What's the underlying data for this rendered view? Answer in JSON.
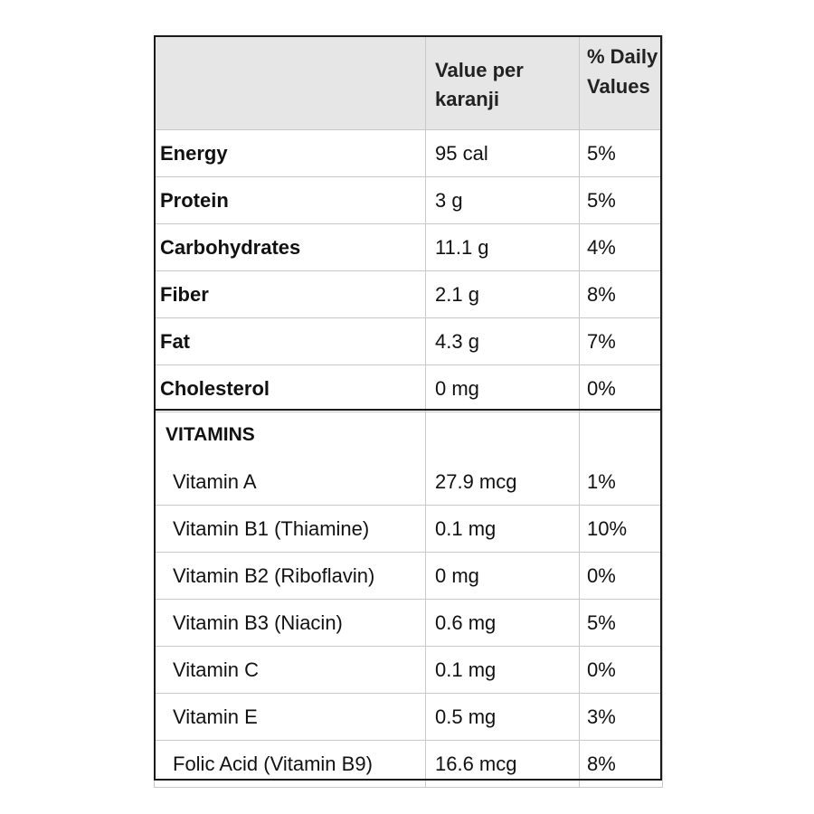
{
  "header": {
    "col1": "",
    "col2": "Value per karanji",
    "col3": "% Daily Values"
  },
  "nutrients": [
    {
      "name": "Energy",
      "value": "95 cal",
      "dv": "5%"
    },
    {
      "name": "Protein",
      "value": "3 g",
      "dv": "5%"
    },
    {
      "name": "Carbohydrates",
      "value": "11.1 g",
      "dv": "4%"
    },
    {
      "name": "Fiber",
      "value": "2.1 g",
      "dv": "8%"
    },
    {
      "name": "Fat",
      "value": "4.3 g",
      "dv": "7%"
    },
    {
      "name": "Cholesterol",
      "value": "0 mg",
      "dv": "0%"
    }
  ],
  "vitamins": {
    "heading": "VITAMINS",
    "items": [
      {
        "name": "Vitamin A",
        "value": "27.9 mcg",
        "dv": "1%"
      },
      {
        "name": "Vitamin B1 (Thiamine)",
        "value": "0.1 mg",
        "dv": "10%"
      },
      {
        "name": "Vitamin B2 (Riboflavin)",
        "value": "0 mg",
        "dv": "0%"
      },
      {
        "name": "Vitamin B3 (Niacin)",
        "value": "0.6 mg",
        "dv": "5%"
      },
      {
        "name": "Vitamin C",
        "value": "0.1 mg",
        "dv": "0%"
      },
      {
        "name": "Vitamin E",
        "value": "0.5 mg",
        "dv": "3%"
      },
      {
        "name": "Folic Acid (Vitamin B9)",
        "value": "16.6 mcg",
        "dv": "8%"
      }
    ]
  },
  "colors": {
    "header_bg": "#e6e6e6",
    "grid": "#c8c8c8",
    "frame": "#1a1a1a"
  }
}
